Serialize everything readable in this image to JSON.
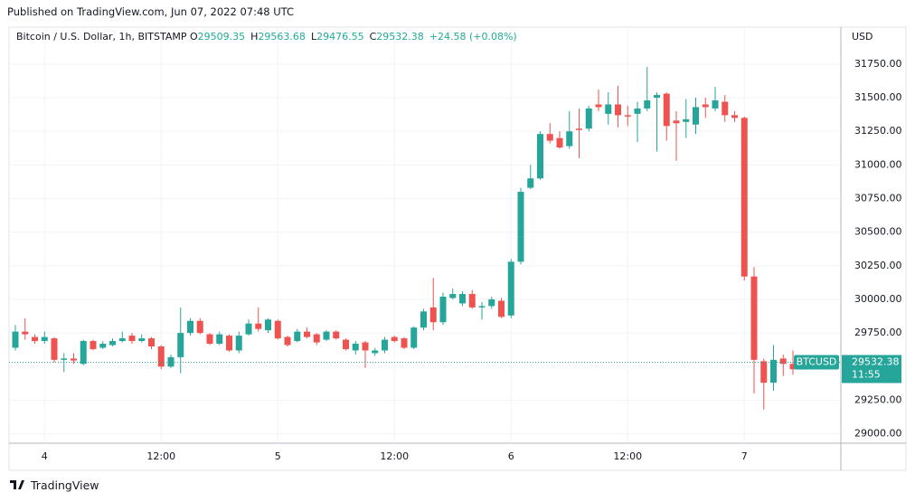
{
  "published": "Published on TradingView.com, Jun 07, 2022 07:48 UTC",
  "brand": "TradingView",
  "chart_data": {
    "type": "candlestick",
    "title": "Bitcoin / U.S. Dollar, 1h, BITSTAMP",
    "ohlc_labels": [
      "O",
      "H",
      "L",
      "C"
    ],
    "change": "+24.58 (+0.08%)",
    "symbol": "BTCUSD",
    "countdown": "11:55",
    "y_axis_label": "USD",
    "up_color": "#26a69a",
    "down_color": "#ef5350",
    "grid": true,
    "categories": [
      null,
      null,
      null,
      "4",
      null,
      null,
      null,
      null,
      null,
      null,
      null,
      null,
      null,
      null,
      null,
      "12:00",
      null,
      null,
      null,
      null,
      null,
      null,
      null,
      null,
      null,
      null,
      null,
      "5",
      null,
      null,
      null,
      null,
      null,
      null,
      null,
      null,
      null,
      null,
      null,
      "12:00",
      null,
      null,
      null,
      null,
      null,
      null,
      null,
      null,
      null,
      null,
      null,
      "6",
      null,
      null,
      null,
      null,
      null,
      null,
      null,
      null,
      null,
      null,
      null,
      "12:00",
      null,
      null,
      null,
      null,
      null,
      null,
      null,
      null,
      null,
      null,
      null,
      "7",
      null,
      null,
      null,
      null,
      null,
      null
    ],
    "open": [
      29640,
      29760,
      29720,
      29690,
      29710,
      29550,
      29560,
      29520,
      29690,
      29640,
      29660,
      29690,
      29730,
      29690,
      29710,
      29650,
      29500,
      29570,
      29750,
      29840,
      29740,
      29670,
      29730,
      29620,
      29740,
      29820,
      29770,
      29840,
      29720,
      29690,
      29760,
      29740,
      29700,
      29760,
      29700,
      29620,
      29680,
      29600,
      29620,
      29720,
      29710,
      29640,
      29790,
      29940,
      29830,
      30010,
      29970,
      30040,
      29940,
      29950,
      29990,
      29880,
      30280,
      30830,
      30900,
      31230,
      31200,
      31140,
      31270,
      31270,
      31450,
      31380,
      31450,
      31370,
      31380,
      31420,
      31500,
      31530,
      31330,
      31320,
      31300,
      31450,
      31420,
      31470,
      31370,
      31350,
      30170,
      29540,
      29380,
      29560,
      29520,
      29509.35
    ],
    "high": [
      29810,
      29860,
      29740,
      29760,
      29720,
      29600,
      29600,
      29700,
      29700,
      29690,
      29710,
      29760,
      29750,
      29740,
      29720,
      29660,
      29590,
      29940,
      29860,
      29860,
      29750,
      29760,
      29740,
      29760,
      29850,
      29940,
      29860,
      29850,
      29730,
      29780,
      29790,
      29750,
      29770,
      29770,
      29710,
      29690,
      29690,
      29640,
      29720,
      29730,
      29720,
      29800,
      29930,
      30160,
      30050,
      30080,
      30060,
      30070,
      29980,
      30020,
      30010,
      30300,
      30830,
      31000,
      31250,
      31310,
      31250,
      31400,
      31420,
      31440,
      31560,
      31540,
      31590,
      31440,
      31470,
      31730,
      31540,
      31540,
      31400,
      31490,
      31500,
      31500,
      31580,
      31520,
      31400,
      31360,
      30240,
      29560,
      29660,
      29590,
      29620,
      29563.68
    ],
    "low": [
      29620,
      29700,
      29670,
      29670,
      29530,
      29460,
      29520,
      29510,
      29620,
      29630,
      29650,
      29680,
      29670,
      29680,
      29630,
      29480,
      29490,
      29450,
      29730,
      29740,
      29660,
      29660,
      29610,
      29600,
      29730,
      29760,
      29750,
      29700,
      29650,
      29680,
      29710,
      29660,
      29690,
      29700,
      29620,
      29590,
      29490,
      29580,
      29600,
      29680,
      29630,
      29630,
      29770,
      29770,
      29810,
      30000,
      29950,
      29930,
      29850,
      29930,
      29860,
      29860,
      30260,
      30820,
      30890,
      31160,
      31120,
      31120,
      31050,
      31250,
      31400,
      31300,
      31280,
      31290,
      31170,
      31400,
      31100,
      31180,
      31030,
      31200,
      31230,
      31350,
      31400,
      31320,
      31320,
      30140,
      29300,
      29180,
      29320,
      29430,
      29440,
      29476.55
    ],
    "close": [
      29760,
      29740,
      29690,
      29720,
      29550,
      29560,
      29545,
      29690,
      29630,
      29670,
      29690,
      29710,
      29690,
      29710,
      29650,
      29500,
      29570,
      29750,
      29840,
      29750,
      29670,
      29740,
      29620,
      29730,
      29820,
      29780,
      29850,
      29710,
      29660,
      29760,
      29720,
      29680,
      29760,
      29710,
      29630,
      29670,
      29620,
      29620,
      29700,
      29690,
      29640,
      29790,
      29910,
      29830,
      30020,
      30040,
      30040,
      29940,
      29950,
      30000,
      29870,
      30280,
      30800,
      30900,
      31230,
      31180,
      31130,
      31250,
      31260,
      31420,
      31430,
      31450,
      31370,
      31360,
      31420,
      31480,
      31520,
      31290,
      31310,
      31340,
      31430,
      31430,
      31480,
      31370,
      31350,
      30170,
      29550,
      29380,
      29550,
      29520,
      29480,
      29532.38
    ],
    "ylim": [
      28930,
      32025
    ],
    "yticks": [
      {
        "value": 29000,
        "label": "29000.00"
      },
      {
        "value": 29250,
        "label": "29250.00"
      },
      {
        "value": 29500,
        "label": "29500.00"
      },
      {
        "value": 29750,
        "label": "29750.00"
      },
      {
        "value": 30000,
        "label": "30000.00"
      },
      {
        "value": 30250,
        "label": "30250.00"
      },
      {
        "value": 30500,
        "label": "30500.00"
      },
      {
        "value": 30750,
        "label": "30750.00"
      },
      {
        "value": 31000,
        "label": "31000.00"
      },
      {
        "value": 31250,
        "label": "31250.00"
      },
      {
        "value": 31500,
        "label": "31500.00"
      },
      {
        "value": 31750,
        "label": "31750.00"
      }
    ]
  }
}
